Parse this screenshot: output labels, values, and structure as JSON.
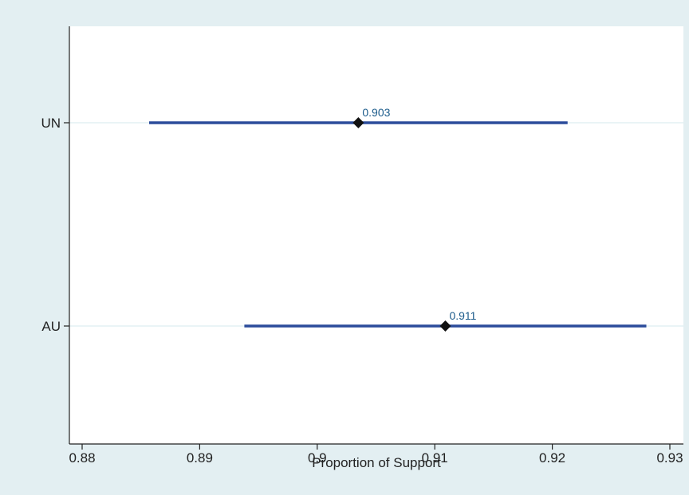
{
  "chart_data": {
    "type": "scatter",
    "title": "",
    "xlabel": "Proportion of Support",
    "ylabel": "",
    "xlim": [
      0.88,
      0.93
    ],
    "xticks": [
      0.88,
      0.89,
      0.9,
      0.91,
      0.92,
      0.93
    ],
    "xtick_labels": [
      "0.88",
      "0.89",
      "0.9",
      "0.91",
      "0.92",
      "0.93"
    ],
    "categories": [
      "UN",
      "AU"
    ],
    "points": [
      {
        "category": "UN",
        "estimate": 0.9035,
        "label": "0.903",
        "ci_low": 0.8857,
        "ci_high": 0.9213
      },
      {
        "category": "AU",
        "estimate": 0.9109,
        "label": "0.911",
        "ci_low": 0.8938,
        "ci_high": 0.928
      }
    ],
    "grid": "horizontal lines at categories",
    "legend": "none",
    "colors": {
      "background": "#e3eff2",
      "plot_area": "#ffffff",
      "interval": "#2b4c9b",
      "marker": "#111111",
      "value_label": "#1a5a8a",
      "gridline": "#d6e8ec",
      "axis": "#222222"
    }
  }
}
